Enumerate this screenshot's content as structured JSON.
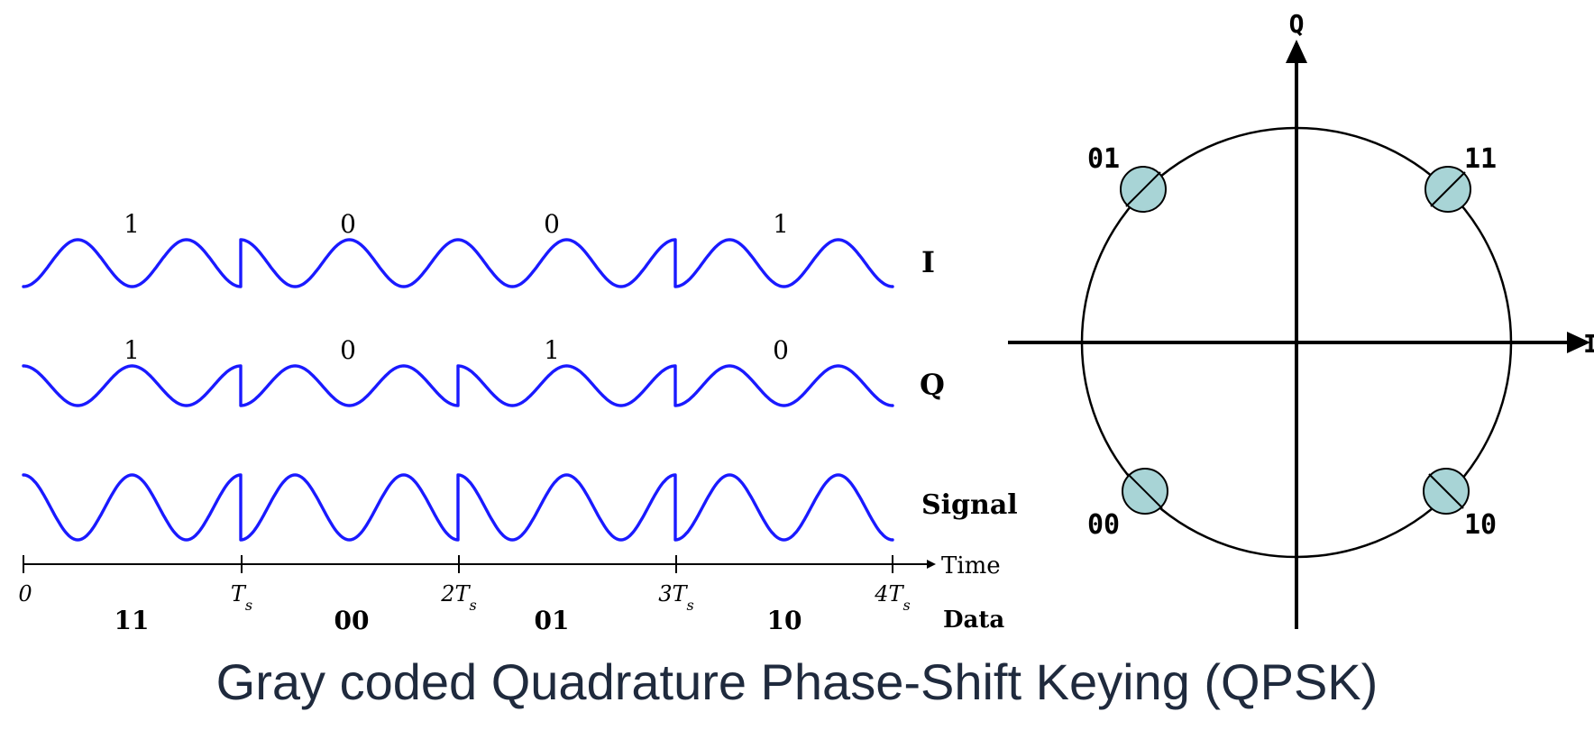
{
  "colors": {
    "wave": "#1a1aff",
    "axis": "#000000",
    "constellation_point": "#a8d4d6",
    "caption_text": "#1f2a3d"
  },
  "timing": {
    "rows": {
      "i": {
        "label": "I",
        "bits": [
          "1",
          "0",
          "0",
          "1"
        ],
        "phases_deg": [
          180,
          0,
          0,
          180
        ]
      },
      "q": {
        "label": "Q",
        "bits": [
          "1",
          "0",
          "1",
          "0"
        ],
        "phases_deg": [
          0,
          180,
          0,
          180
        ]
      },
      "signal": {
        "label": "Signal",
        "phases_deg": [
          0,
          180,
          0,
          180
        ]
      }
    },
    "time_label": "Time",
    "data_label": "Data",
    "tick_labels": [
      {
        "coef": "0",
        "sub": ""
      },
      {
        "coef": "T",
        "sub": "s"
      },
      {
        "coef": "2T",
        "sub": "s"
      },
      {
        "coef": "3T",
        "sub": "s"
      },
      {
        "coef": "4T",
        "sub": "s"
      }
    ],
    "symbols": [
      "11",
      "00",
      "01",
      "10"
    ],
    "cycles_per_symbol": 2
  },
  "constellation": {
    "q_axis_label": "Q",
    "i_axis_label": "I",
    "points": [
      {
        "label": "11",
        "i": 1,
        "q": 1
      },
      {
        "label": "01",
        "i": -1,
        "q": 1
      },
      {
        "label": "00",
        "i": -1,
        "q": -1
      },
      {
        "label": "10",
        "i": 1,
        "q": -1
      }
    ]
  },
  "caption": "Gray coded Quadrature Phase-Shift Keying (QPSK)"
}
